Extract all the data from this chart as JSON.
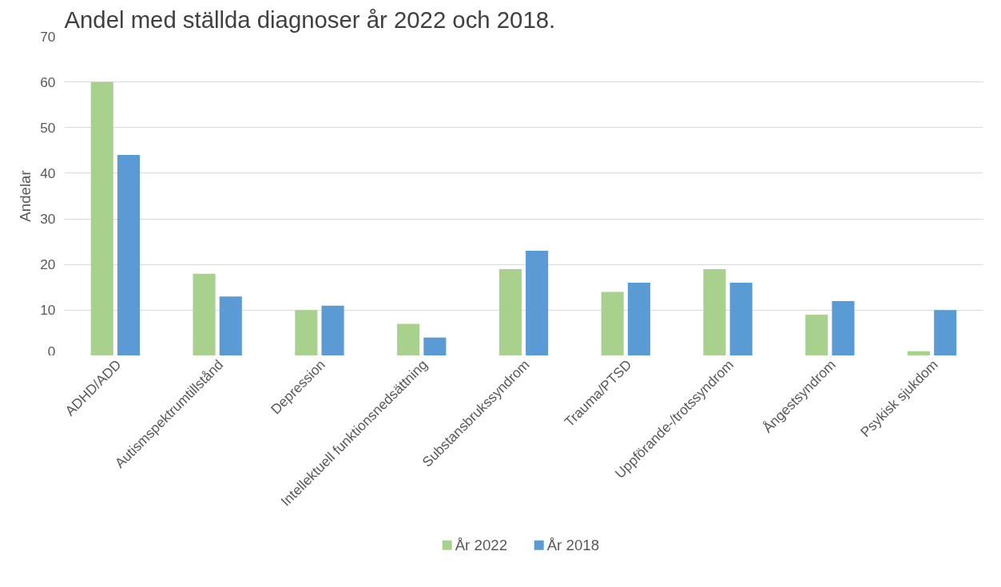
{
  "chart_data": {
    "type": "bar",
    "title": "Andel med ställda diagnoser år 2022 och 2018.",
    "ylabel": "Andelar",
    "categories": [
      "ADHD/ADD",
      "Autismspektrumtillstånd",
      "Depression",
      "Intellektuell funktionsnedsättning",
      "Substansbrukssyndrom",
      "Trauma/PTSD",
      "Uppförande-/trotssyndrom",
      "Ångestsyndrom",
      "Psykisk sjukdom"
    ],
    "series": [
      {
        "name": "År 2022",
        "color": "#a9d18e",
        "values": [
          60,
          18,
          10,
          7,
          19,
          14,
          19,
          9,
          1
        ]
      },
      {
        "name": "År 2018",
        "color": "#5b9bd5",
        "values": [
          44,
          13,
          11,
          4,
          23,
          16,
          16,
          12,
          10
        ]
      }
    ],
    "ylim": [
      0,
      70
    ],
    "yticks": [
      0,
      10,
      20,
      30,
      40,
      50,
      60,
      70
    ],
    "grid": "y",
    "legend": "bottom"
  }
}
